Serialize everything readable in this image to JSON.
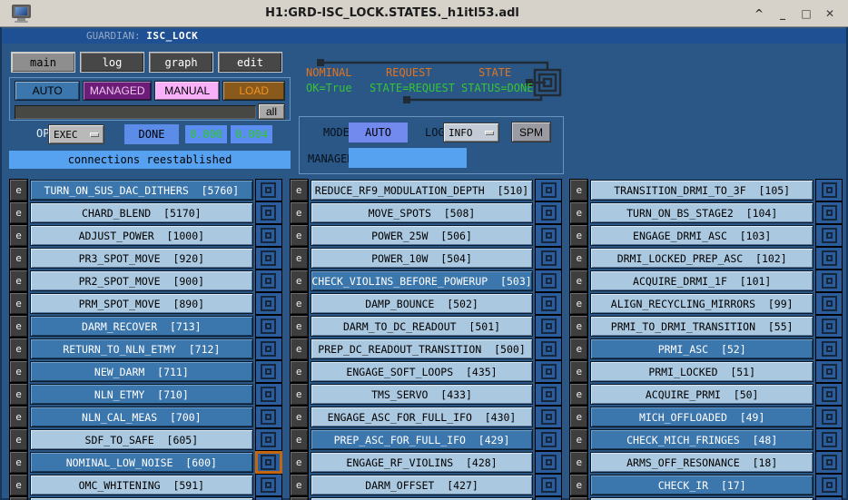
{
  "window": {
    "title": "H1:GRD-ISC_LOCK.STATES._h1itl53.adl",
    "controls": {
      "shade": "^",
      "minimize": "_",
      "maximize": "□",
      "close": "✕"
    }
  },
  "guardian": {
    "prefix": "GUARDIAN:",
    "name": "ISC_LOCK"
  },
  "nav": {
    "main": "main",
    "log": "log",
    "graph": "graph",
    "edit": "edit"
  },
  "mode_buttons": {
    "auto": "AUTO",
    "managed": "MANAGED",
    "manual": "MANUAL",
    "load": "LOAD",
    "all": "all"
  },
  "op_row": {
    "op_label": "OP",
    "exec": "EXEC",
    "done": "DONE",
    "value1": "0.000",
    "value2": "0.004"
  },
  "status_banner": "connections reestablished",
  "state_summary": {
    "nominal_label": "NOMINAL",
    "nominal_value": "OK=True",
    "request_label": "REQUEST",
    "request_value": "STATE=REQUEST",
    "state_label": "STATE",
    "state_value": "STATUS=DONE"
  },
  "manager_panel": {
    "mode_label": "MODE",
    "mode_value": "AUTO",
    "log_label": "LOG",
    "log_value": "INFO",
    "spm": "SPM",
    "manager_label": "MANAGER",
    "manager_value": ""
  },
  "colors": {
    "background": "#2b5786",
    "light_state": "#aac8e0",
    "active_state": "#3b76ad",
    "highlight_orange": "#c4660e",
    "managed_purple": "#6d1c79",
    "manual_pink": "#f8b0f8",
    "load_brown": "#8a5a1d",
    "readback_green": "#2ec52e",
    "label_orange": "#e1731f",
    "banner_blue": "#57a2f0"
  },
  "edit_button_label": "e",
  "columns": [
    {
      "rows": [
        {
          "name": "TURN_ON_SUS_DAC_DITHERS",
          "index": "5760",
          "active": true,
          "marked": false
        },
        {
          "name": "CHARD_BLEND",
          "index": "5170",
          "active": false,
          "marked": false
        },
        {
          "name": "ADJUST_POWER",
          "index": "1000",
          "active": false,
          "marked": false
        },
        {
          "name": "PR3_SPOT_MOVE",
          "index": "920",
          "active": false,
          "marked": false
        },
        {
          "name": "PR2_SPOT_MOVE",
          "index": "900",
          "active": false,
          "marked": false
        },
        {
          "name": "PRM_SPOT_MOVE",
          "index": "890",
          "active": false,
          "marked": false
        },
        {
          "name": "DARM_RECOVER",
          "index": "713",
          "active": true,
          "marked": false
        },
        {
          "name": "RETURN_TO_NLN_ETMY",
          "index": "712",
          "active": true,
          "marked": false
        },
        {
          "name": "NEW_DARM",
          "index": "711",
          "active": true,
          "marked": false
        },
        {
          "name": "NLN_ETMY",
          "index": "710",
          "active": true,
          "marked": false
        },
        {
          "name": "NLN_CAL_MEAS",
          "index": "700",
          "active": true,
          "marked": false
        },
        {
          "name": "SDF_TO_SAFE",
          "index": "605",
          "active": false,
          "marked": false
        },
        {
          "name": "NOMINAL_LOW_NOISE",
          "index": "600",
          "active": true,
          "marked": true
        },
        {
          "name": "OMC_WHITENING",
          "index": "591",
          "active": false,
          "marked": false
        }
      ]
    },
    {
      "rows": [
        {
          "name": "REDUCE_RF9_MODULATION_DEPTH",
          "index": "510",
          "active": false,
          "marked": false
        },
        {
          "name": "MOVE_SPOTS",
          "index": "508",
          "active": false,
          "marked": false
        },
        {
          "name": "POWER_25W",
          "index": "506",
          "active": false,
          "marked": false
        },
        {
          "name": "POWER_10W",
          "index": "504",
          "active": false,
          "marked": false
        },
        {
          "name": "CHECK_VIOLINS_BEFORE_POWERUP",
          "index": "503",
          "active": true,
          "marked": false
        },
        {
          "name": "DAMP_BOUNCE",
          "index": "502",
          "active": false,
          "marked": false
        },
        {
          "name": "DARM_TO_DC_READOUT",
          "index": "501",
          "active": false,
          "marked": false
        },
        {
          "name": "PREP_DC_READOUT_TRANSITION",
          "index": "500",
          "active": false,
          "marked": false
        },
        {
          "name": "ENGAGE_SOFT_LOOPS",
          "index": "435",
          "active": false,
          "marked": false
        },
        {
          "name": "TMS_SERVO",
          "index": "433",
          "active": false,
          "marked": false
        },
        {
          "name": "ENGAGE_ASC_FOR_FULL_IFO",
          "index": "430",
          "active": false,
          "marked": false
        },
        {
          "name": "PREP_ASC_FOR_FULL_IFO",
          "index": "429",
          "active": true,
          "marked": false
        },
        {
          "name": "ENGAGE_RF_VIOLINS",
          "index": "428",
          "active": false,
          "marked": false
        },
        {
          "name": "DARM_OFFSET",
          "index": "427",
          "active": false,
          "marked": false
        }
      ]
    },
    {
      "rows": [
        {
          "name": "TRANSITION_DRMI_TO_3F",
          "index": "105",
          "active": false,
          "marked": false
        },
        {
          "name": "TURN_ON_BS_STAGE2",
          "index": "104",
          "active": false,
          "marked": false
        },
        {
          "name": "ENGAGE_DRMI_ASC",
          "index": "103",
          "active": false,
          "marked": false
        },
        {
          "name": "DRMI_LOCKED_PREP_ASC",
          "index": "102",
          "active": false,
          "marked": false
        },
        {
          "name": "ACQUIRE_DRMI_1F",
          "index": "101",
          "active": false,
          "marked": false
        },
        {
          "name": "ALIGN_RECYCLING_MIRRORS",
          "index": "99",
          "active": false,
          "marked": false
        },
        {
          "name": "PRMI_TO_DRMI_TRANSITION",
          "index": "55",
          "active": false,
          "marked": false
        },
        {
          "name": "PRMI_ASC",
          "index": "52",
          "active": true,
          "marked": false
        },
        {
          "name": "PRMI_LOCKED",
          "index": "51",
          "active": false,
          "marked": false
        },
        {
          "name": "ACQUIRE_PRMI",
          "index": "50",
          "active": false,
          "marked": false
        },
        {
          "name": "MICH_OFFLOADED",
          "index": "49",
          "active": true,
          "marked": false
        },
        {
          "name": "CHECK_MICH_FRINGES",
          "index": "48",
          "active": true,
          "marked": false
        },
        {
          "name": "ARMS_OFF_RESONANCE",
          "index": "18",
          "active": false,
          "marked": false
        },
        {
          "name": "CHECK_IR",
          "index": "17",
          "active": true,
          "marked": false
        }
      ]
    }
  ]
}
